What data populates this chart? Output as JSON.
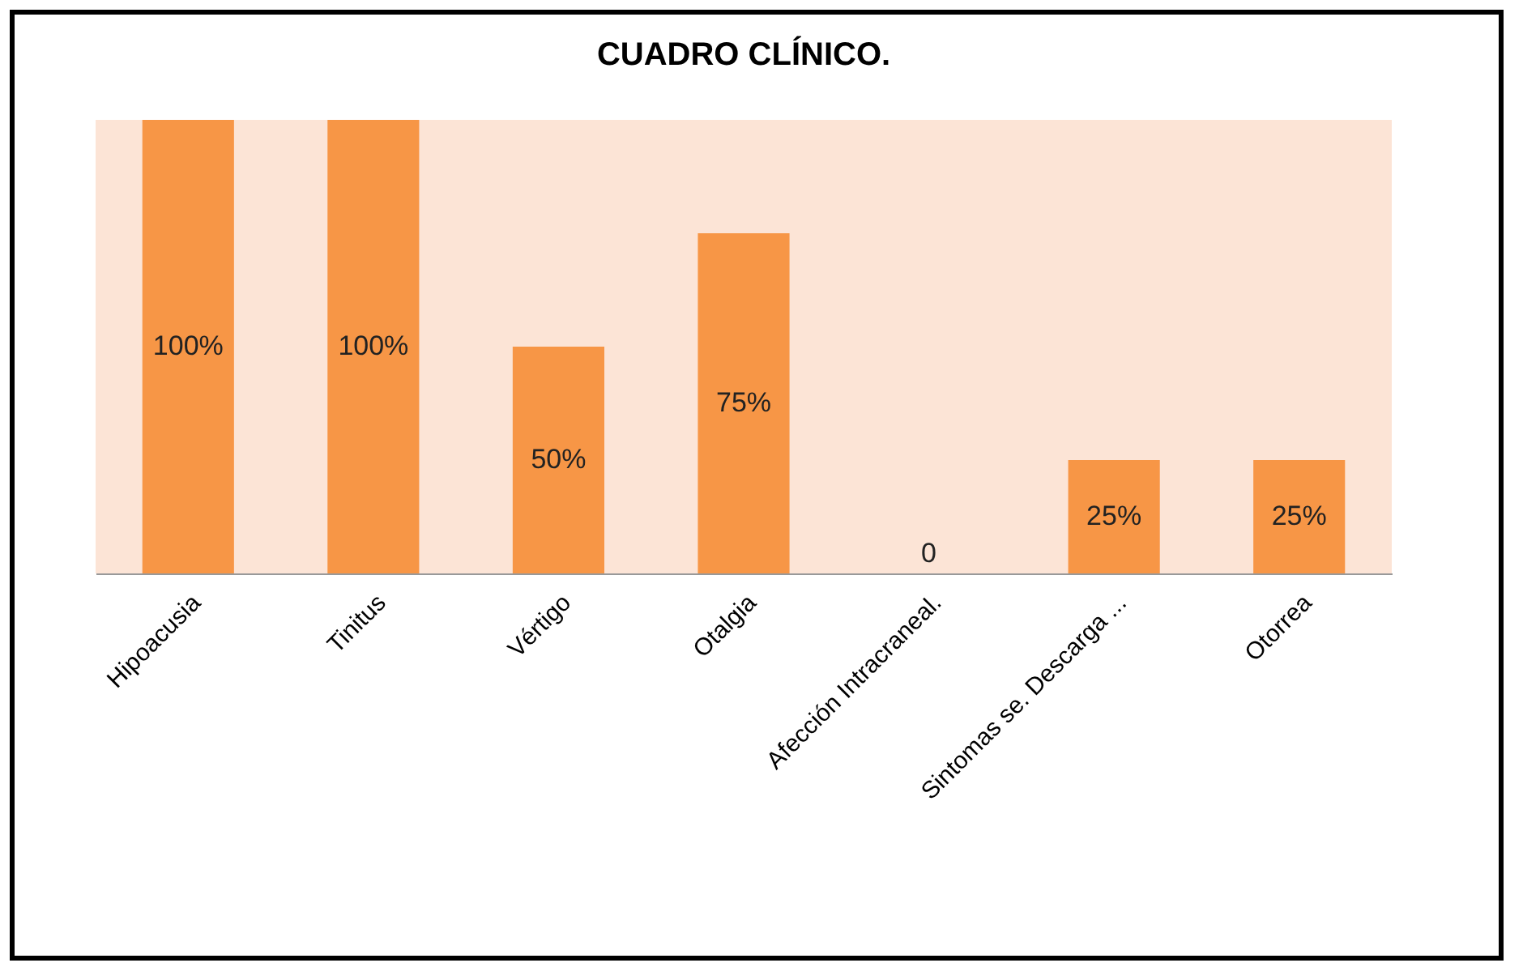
{
  "chart_data": {
    "type": "bar",
    "title": "CUADRO CLÍNICO.",
    "categories": [
      "Hipoacusia",
      "Tinitus",
      "Vértigo",
      "Otalgia",
      "Afección Intracraneal.",
      "Sintomas se. Descarga ...",
      "Otorrea"
    ],
    "values": [
      100,
      100,
      50,
      75,
      0,
      25,
      25
    ],
    "value_labels": [
      "100%",
      "100%",
      "50%",
      "75%",
      "0",
      "25%",
      "25%"
    ],
    "color": "#f79646",
    "grid": false
  }
}
